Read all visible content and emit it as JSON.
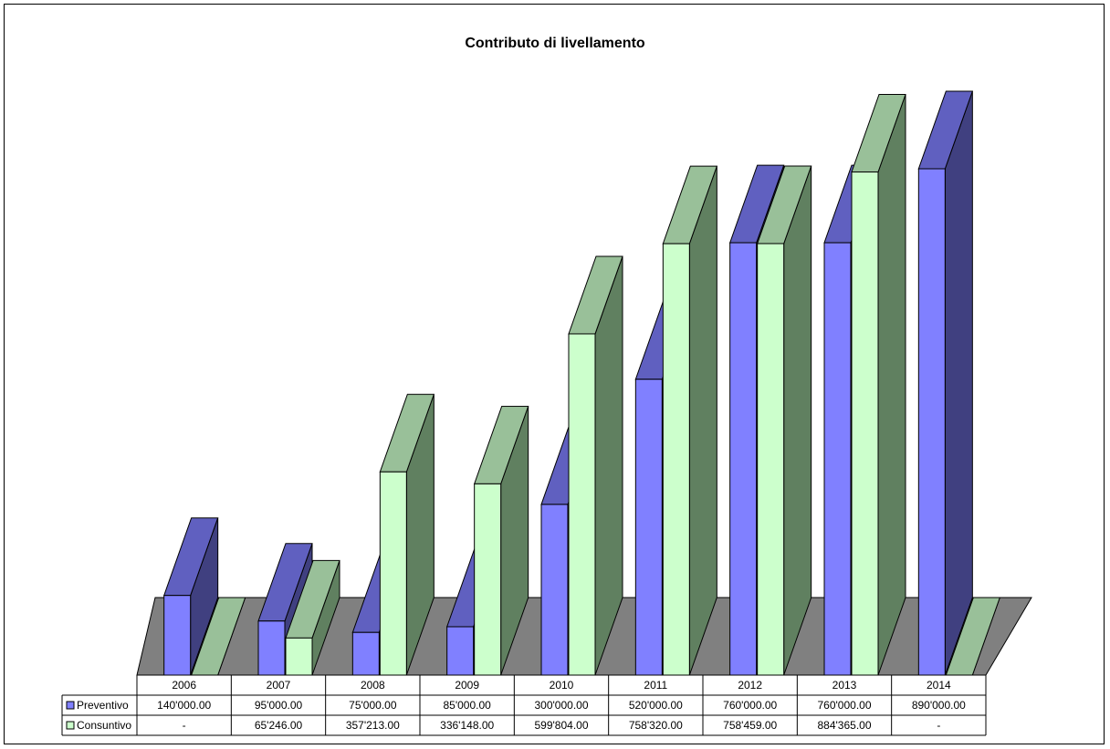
{
  "chart_data": {
    "type": "bar",
    "title": "Contributo di livellamento",
    "categories": [
      "2006",
      "2007",
      "2008",
      "2009",
      "2010",
      "2011",
      "2012",
      "2013",
      "2014"
    ],
    "series": [
      {
        "name": "Preventivo",
        "values": [
          140000,
          95000,
          75000,
          85000,
          300000,
          520000,
          760000,
          760000,
          890000
        ],
        "labels": [
          "140'000.00",
          "95'000.00",
          "75'000.00",
          "85'000.00",
          "300'000.00",
          "520'000.00",
          "760'000.00",
          "760'000.00",
          "890'000.00"
        ],
        "color": "#8080ff"
      },
      {
        "name": "Consuntivo",
        "values": [
          null,
          65246,
          357213,
          336148,
          599804,
          758320,
          758459,
          884365,
          null
        ],
        "labels": [
          "-",
          "65'246.00",
          "357'213.00",
          "336'148.00",
          "599'804.00",
          "758'320.00",
          "758'459.00",
          "884'365.00",
          "-"
        ],
        "color": "#ccffcc"
      }
    ],
    "data_table": true,
    "grid": false,
    "legend": "data-table"
  }
}
